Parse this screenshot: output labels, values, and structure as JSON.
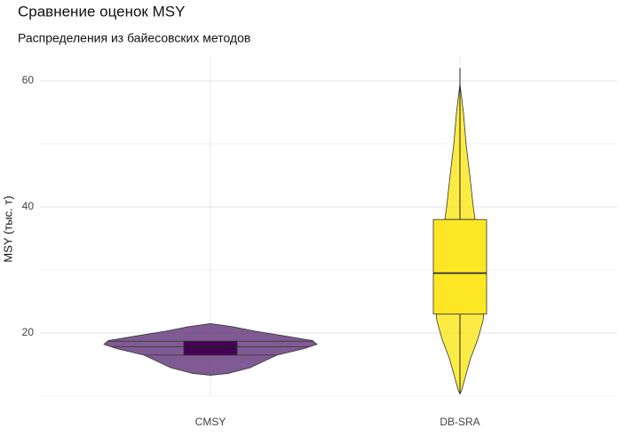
{
  "chart_data": {
    "type": "violin",
    "title": "Сравнение оценок MSY",
    "subtitle": "Распределения из байесовских методов",
    "ylabel": "MSY (тыс. т)",
    "categories": [
      "CMSY",
      "DB-SRA"
    ],
    "ylim": [
      10,
      64
    ],
    "yticks": [
      20,
      40,
      60
    ],
    "minor_yticks": [
      10,
      30,
      50
    ],
    "grid": true,
    "draw_quantiles": true,
    "series": [
      {
        "color": "#6a3d7f",
        "box_color": "#440154",
        "violin": {
          "y": [
            13.3,
            13.6,
            14.5,
            15.5,
            16.5,
            17.5,
            18.2,
            18.8,
            19.5,
            20.3,
            21.0,
            21.5
          ],
          "density": [
            0,
            0.067,
            0.15,
            0.2,
            0.25,
            0.35,
            0.4,
            0.383,
            0.283,
            0.167,
            0.083,
            0
          ]
        },
        "box": {
          "q1": 16.5,
          "median": 17.8,
          "q3": 18.7,
          "lower": 16.5,
          "upper": 18.7
        }
      },
      {
        "color": "#fde725",
        "box_color": "#fde725",
        "violin": {
          "y": [
            10.3,
            11,
            13,
            16,
            19,
            22,
            25,
            30,
            35,
            40,
            45,
            50,
            55,
            59.5
          ],
          "density": [
            0,
            0.007,
            0.02,
            0.04,
            0.067,
            0.087,
            0.093,
            0.08,
            0.067,
            0.05,
            0.037,
            0.023,
            0.013,
            0
          ]
        },
        "box": {
          "q1": 23,
          "median": 29.5,
          "q3": 38,
          "lower": 10.5,
          "upper": 62
        }
      }
    ]
  }
}
